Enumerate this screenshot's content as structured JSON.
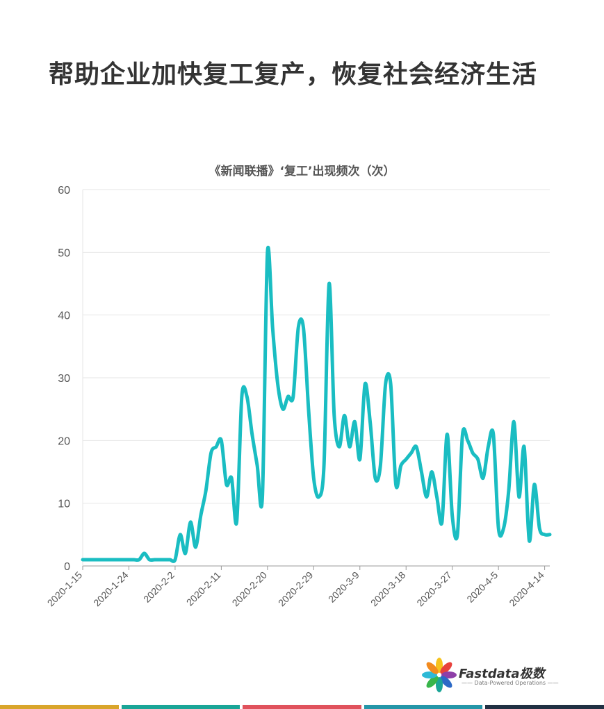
{
  "headline": "帮助企业加快复工复产，恢复社会经济生活",
  "brand": {
    "name": "Fastdata极数",
    "tagline": "—— Data-Powered Operations ——"
  },
  "colors": {
    "line": "#1ABDC2",
    "grid": "#E6E6E6",
    "axis_text": "#555555",
    "stripes": [
      "#D9A52B",
      "#1AA597",
      "#E0525C",
      "#2596A8",
      "#213043"
    ]
  },
  "chart_data": {
    "type": "line",
    "title": "《新闻联播》‘复工’出现频次（次）",
    "xlabel": "",
    "ylabel": "",
    "ylim": [
      0,
      60
    ],
    "yticks": [
      0,
      10,
      20,
      30,
      40,
      50,
      60
    ],
    "grid": true,
    "xtick_labels": [
      "2020-1-15",
      "2020-1-24",
      "2020-2-2",
      "2020-2-11",
      "2020-2-20",
      "2020-2-29",
      "2020-3-9",
      "2020-3-18",
      "2020-3-27",
      "2020-4-5",
      "2020-4-14"
    ],
    "x": [
      "2020-1-15",
      "2020-1-16",
      "2020-1-17",
      "2020-1-18",
      "2020-1-19",
      "2020-1-20",
      "2020-1-21",
      "2020-1-22",
      "2020-1-23",
      "2020-1-24",
      "2020-1-25",
      "2020-1-26",
      "2020-1-27",
      "2020-1-28",
      "2020-1-29",
      "2020-1-30",
      "2020-1-31",
      "2020-2-1",
      "2020-2-2",
      "2020-2-3",
      "2020-2-4",
      "2020-2-5",
      "2020-2-6",
      "2020-2-7",
      "2020-2-8",
      "2020-2-9",
      "2020-2-10",
      "2020-2-11",
      "2020-2-12",
      "2020-2-13",
      "2020-2-14",
      "2020-2-15",
      "2020-2-16",
      "2020-2-17",
      "2020-2-18",
      "2020-2-19",
      "2020-2-20",
      "2020-2-21",
      "2020-2-22",
      "2020-2-23",
      "2020-2-24",
      "2020-2-25",
      "2020-2-26",
      "2020-2-27",
      "2020-2-28",
      "2020-2-29",
      "2020-3-1",
      "2020-3-2",
      "2020-3-3",
      "2020-3-4",
      "2020-3-5",
      "2020-3-6",
      "2020-3-7",
      "2020-3-8",
      "2020-3-9",
      "2020-3-10",
      "2020-3-11",
      "2020-3-12",
      "2020-3-13",
      "2020-3-14",
      "2020-3-15",
      "2020-3-16",
      "2020-3-17",
      "2020-3-18",
      "2020-3-19",
      "2020-3-20",
      "2020-3-21",
      "2020-3-22",
      "2020-3-23",
      "2020-3-24",
      "2020-3-25",
      "2020-3-26",
      "2020-3-27",
      "2020-3-28",
      "2020-3-29",
      "2020-3-30",
      "2020-3-31",
      "2020-4-1",
      "2020-4-2",
      "2020-4-3",
      "2020-4-4",
      "2020-4-5",
      "2020-4-6",
      "2020-4-7",
      "2020-4-8",
      "2020-4-9",
      "2020-4-10",
      "2020-4-11",
      "2020-4-12",
      "2020-4-13",
      "2020-4-14",
      "2020-4-15"
    ],
    "series": [
      {
        "values": [
          1,
          1,
          1,
          1,
          1,
          1,
          1,
          1,
          1,
          1,
          1,
          1,
          2,
          1,
          1,
          1,
          1,
          1,
          1,
          5,
          2,
          7,
          3,
          8,
          12,
          18,
          19,
          20,
          13,
          14,
          7,
          27,
          27,
          21,
          16,
          11,
          50,
          38,
          29,
          25,
          27,
          27,
          38,
          38,
          25,
          14,
          11,
          16,
          45,
          24,
          19,
          24,
          19,
          23,
          17,
          29,
          23,
          14,
          16,
          29,
          29,
          13,
          16,
          17,
          18,
          19,
          15,
          11,
          15,
          11,
          7,
          21,
          8,
          5,
          21,
          20,
          18,
          17,
          14,
          19,
          21,
          6,
          6,
          12,
          23,
          11,
          19,
          4,
          13,
          6,
          5,
          5
        ]
      }
    ]
  }
}
